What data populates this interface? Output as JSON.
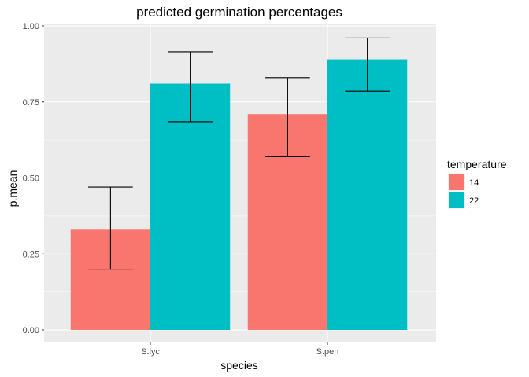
{
  "chart_data": {
    "type": "bar",
    "title": "predicted germination percentages",
    "xlabel": "species",
    "ylabel": "p.mean",
    "categories": [
      "S.lyc",
      "S.pen"
    ],
    "ylim": [
      0,
      1
    ],
    "yticks": [
      "0.00",
      "0.25",
      "0.50",
      "0.75",
      "1.00"
    ],
    "ytick_values": [
      0,
      0.25,
      0.5,
      0.75,
      1.0
    ],
    "legend": {
      "title": "temperature",
      "placement": "right"
    },
    "series": [
      {
        "name": "14",
        "color": "#F8766D",
        "values": [
          0.33,
          0.71
        ],
        "lower": [
          0.2,
          0.57
        ],
        "upper": [
          0.47,
          0.83
        ]
      },
      {
        "name": "22",
        "color": "#00BFC4",
        "values": [
          0.81,
          0.89
        ],
        "lower": [
          0.685,
          0.785
        ],
        "upper": [
          0.915,
          0.96
        ]
      }
    ],
    "grid": true,
    "panel_background": "#EBEBEB",
    "grid_color": "#FFFFFF"
  }
}
